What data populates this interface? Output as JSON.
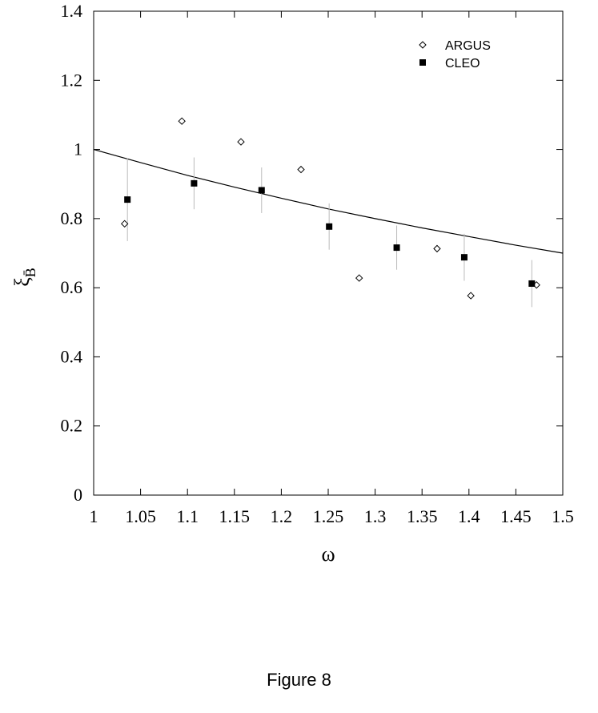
{
  "caption": "Figure 8",
  "chart_data": {
    "type": "scatter",
    "title": "",
    "xlabel": "ω",
    "ylabel": "ξ",
    "ylabel_sub": "B̄",
    "xlim": [
      1,
      1.5
    ],
    "ylim": [
      0,
      1.4
    ],
    "x_ticks": [
      1,
      1.05,
      1.1,
      1.15,
      1.2,
      1.25,
      1.3,
      1.35,
      1.4,
      1.45,
      1.5
    ],
    "x_tick_labels": [
      "1",
      "1.05",
      "1.1",
      "1.15",
      "1.2",
      "1.25",
      "1.3",
      "1.35",
      "1.4",
      "1.45",
      "1.5"
    ],
    "y_ticks": [
      0,
      0.2,
      0.4,
      0.6,
      0.8,
      1.0,
      1.2,
      1.4
    ],
    "y_tick_labels": [
      "0",
      "0.2",
      "0.4",
      "0.6",
      "0.8",
      "1",
      "1.2",
      "1.4"
    ],
    "grid": false,
    "legend_position": "top-right",
    "series": [
      {
        "name": "ARGUS",
        "marker": "open-diamond",
        "color": "#000000",
        "x": [
          1.033,
          1.094,
          1.157,
          1.221,
          1.283,
          1.366,
          1.402,
          1.472
        ],
        "y": [
          0.785,
          1.082,
          1.022,
          0.942,
          0.628,
          0.713,
          0.577,
          0.608
        ]
      },
      {
        "name": "CLEO",
        "marker": "filled-square",
        "color": "#000000",
        "error_color": "#bbbbbb",
        "x": [
          1.036,
          1.107,
          1.179,
          1.251,
          1.323,
          1.395,
          1.467
        ],
        "y": [
          0.855,
          0.902,
          0.882,
          0.777,
          0.716,
          0.688,
          0.612
        ],
        "y_err": [
          0.12,
          0.075,
          0.066,
          0.067,
          0.064,
          0.068,
          0.068
        ]
      },
      {
        "name": "",
        "type": "line",
        "color": "#000000",
        "x": [
          1,
          1.05,
          1.1,
          1.15,
          1.2,
          1.25,
          1.3,
          1.35,
          1.4,
          1.45,
          1.5
        ],
        "y": [
          1.0,
          0.962,
          0.925,
          0.891,
          0.859,
          0.828,
          0.8,
          0.773,
          0.748,
          0.723,
          0.7
        ]
      }
    ]
  }
}
